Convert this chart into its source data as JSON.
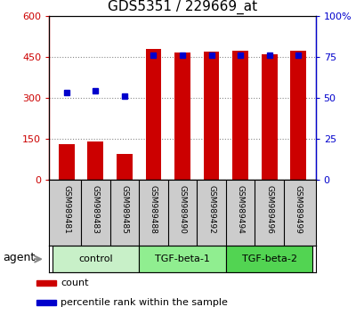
{
  "title": "GDS5351 / 229669_at",
  "samples": [
    "GSM989481",
    "GSM989483",
    "GSM989485",
    "GSM989488",
    "GSM989490",
    "GSM989492",
    "GSM989494",
    "GSM989496",
    "GSM989499"
  ],
  "counts": [
    130,
    138,
    95,
    478,
    465,
    468,
    472,
    460,
    473
  ],
  "percentile_ranks": [
    53,
    54,
    51,
    76,
    76,
    76,
    76,
    76,
    76
  ],
  "groups": [
    {
      "label": "control",
      "indices": [
        0,
        1,
        2
      ],
      "color": "#c8f0c8"
    },
    {
      "label": "TGF-beta-1",
      "indices": [
        3,
        4,
        5
      ],
      "color": "#90ee90"
    },
    {
      "label": "TGF-beta-2",
      "indices": [
        6,
        7,
        8
      ],
      "color": "#52d452"
    }
  ],
  "bar_color": "#cc0000",
  "dot_color": "#0000cc",
  "left_ylim": [
    0,
    600
  ],
  "left_yticks": [
    0,
    150,
    300,
    450,
    600
  ],
  "left_ytick_labels": [
    "0",
    "150",
    "300",
    "450",
    "600"
  ],
  "right_ylim": [
    0,
    100
  ],
  "right_yticks": [
    0,
    25,
    50,
    75,
    100
  ],
  "right_ytick_labels": [
    "0",
    "25",
    "50",
    "75",
    "100%"
  ],
  "left_ylabel_color": "#cc0000",
  "right_ylabel_color": "#0000cc",
  "agent_label": "agent",
  "legend_count_label": "count",
  "legend_pct_label": "percentile rank within the sample",
  "bg_color": "#ffffff",
  "plot_bg_color": "#ffffff",
  "grid_color": "#888888",
  "figsize": [
    4.1,
    3.54
  ],
  "dpi": 100,
  "bar_width": 0.55,
  "sample_label_fontsize": 6.5,
  "group_label_fontsize": 8,
  "title_fontsize": 11,
  "legend_fontsize": 8,
  "ytick_fontsize": 8,
  "agent_fontsize": 9
}
